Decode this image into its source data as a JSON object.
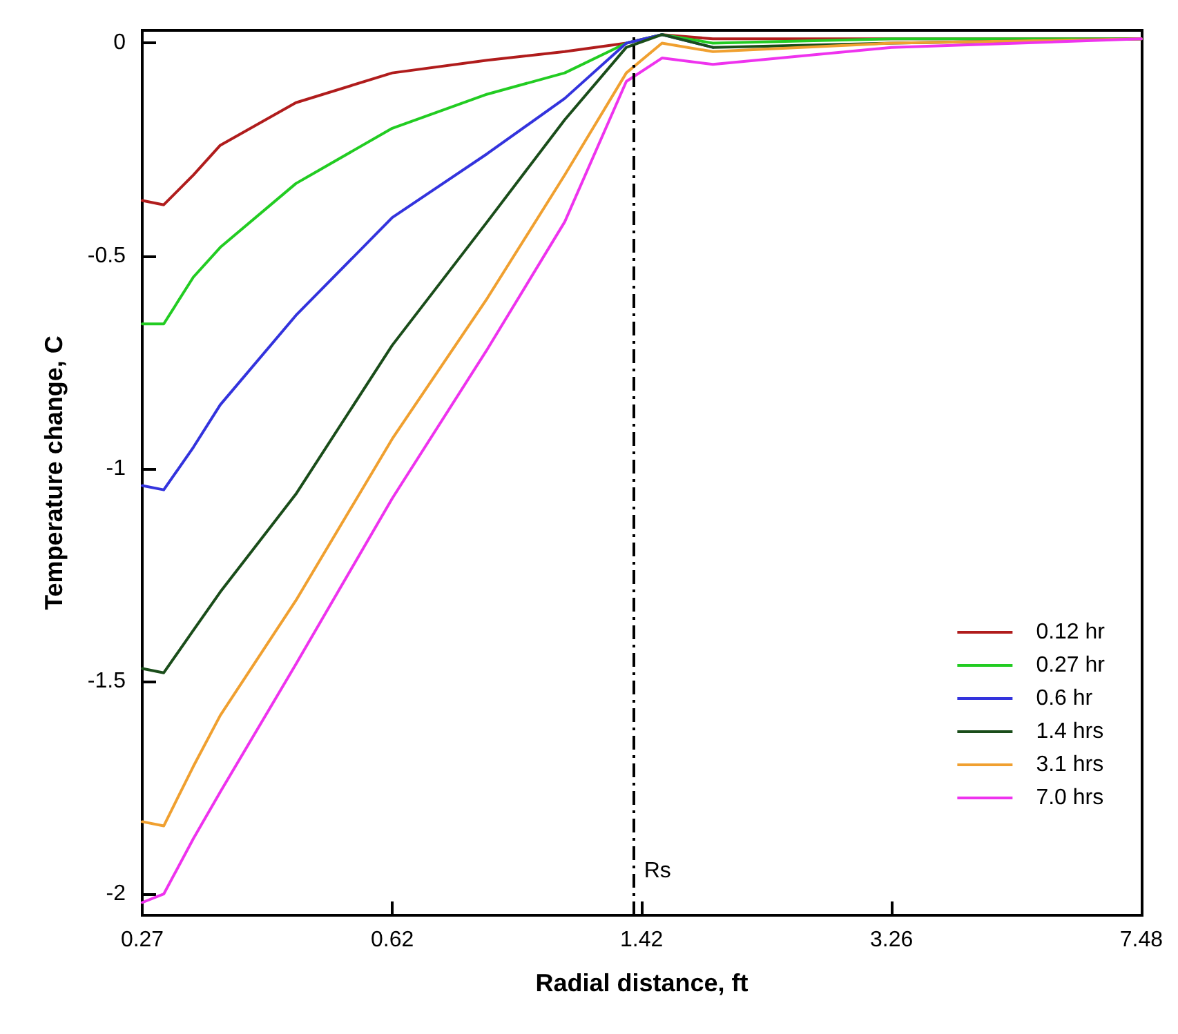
{
  "chart_data": {
    "type": "line",
    "xlabel": "Radial distance, ft",
    "ylabel": "Temperature change, C",
    "log": "x",
    "xlim": [
      0.27,
      7.48
    ],
    "xticks": [
      0.27,
      0.62,
      1.42,
      3.26,
      7.48
    ],
    "ylim": [
      -2.05,
      0.03
    ],
    "yticks": [
      -2,
      -1.5,
      -1,
      -0.5,
      0
    ],
    "x": [
      0.27,
      0.29,
      0.32,
      0.35,
      0.45,
      0.62,
      0.85,
      1.1,
      1.35,
      1.52,
      1.8,
      3.26,
      7.48
    ],
    "series": [
      {
        "name": "0.12 hr",
        "color": "#b01c1c",
        "values": [
          -0.37,
          -0.38,
          -0.31,
          -0.24,
          -0.14,
          -0.07,
          -0.04,
          -0.02,
          0.0,
          0.02,
          0.01,
          0.01,
          0.01
        ]
      },
      {
        "name": "0.27 hr",
        "color": "#22cc22",
        "values": [
          -0.66,
          -0.66,
          -0.55,
          -0.48,
          -0.33,
          -0.2,
          -0.12,
          -0.07,
          0.0,
          0.02,
          0.0,
          0.01,
          0.01
        ]
      },
      {
        "name": "0.6 hr",
        "color": "#3333dd",
        "values": [
          -1.04,
          -1.05,
          -0.95,
          -0.85,
          -0.64,
          -0.41,
          -0.26,
          -0.13,
          0.0,
          0.02,
          -0.01,
          null,
          null
        ]
      },
      {
        "name": "1.4 hrs",
        "color": "#1a4d1a",
        "values": [
          -1.47,
          -1.48,
          -1.38,
          -1.29,
          -1.06,
          -0.71,
          -0.42,
          -0.18,
          -0.01,
          0.02,
          -0.01,
          0.0,
          0.01
        ]
      },
      {
        "name": "3.1 hrs",
        "color": "#f0a030",
        "values": [
          -1.83,
          -1.84,
          -1.7,
          -1.58,
          -1.31,
          -0.93,
          -0.6,
          -0.31,
          -0.07,
          0.0,
          -0.02,
          0.0,
          0.01
        ]
      },
      {
        "name": "7.0 hrs",
        "color": "#ee33ee",
        "values": [
          -2.02,
          -2.0,
          -1.87,
          -1.76,
          -1.46,
          -1.07,
          -0.72,
          -0.42,
          -0.09,
          -0.035,
          -0.05,
          -0.01,
          0.01
        ]
      }
    ],
    "ref_lines": [
      {
        "axis": "x",
        "value": 1.38,
        "label": "Rs",
        "color": "#000000",
        "line_style": "dashdot"
      }
    ],
    "legend": "bottom right",
    "grid": false,
    "marker": "none",
    "line_style": "solid"
  }
}
